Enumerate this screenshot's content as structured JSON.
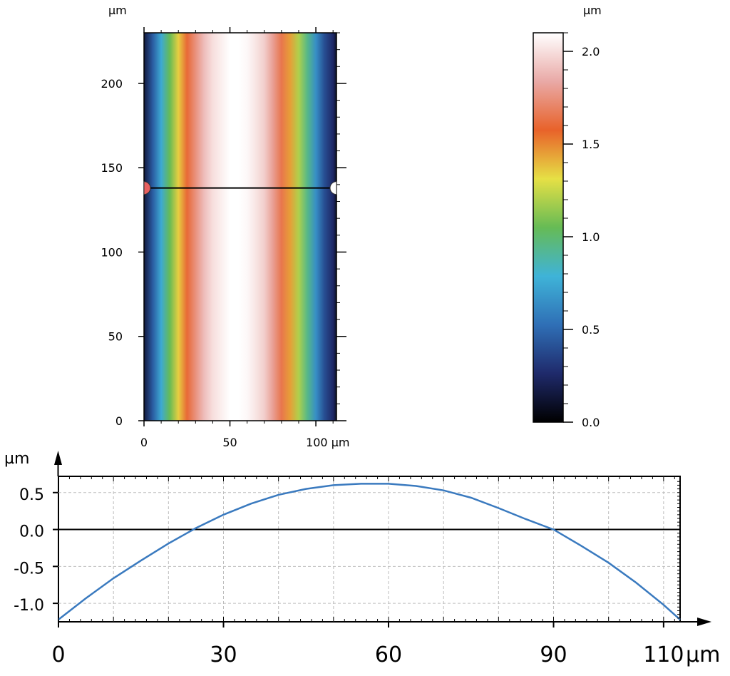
{
  "chart_data": [
    {
      "type": "heatmap",
      "description": "Surface height map",
      "x_unit": "µm",
      "y_unit": "µm",
      "xlim": [
        0,
        112
      ],
      "ylim": [
        0,
        230
      ],
      "xticks": [
        0,
        50,
        100
      ],
      "yticks": [
        0,
        50,
        100,
        150,
        200
      ],
      "x_last_tick_label": "100 µm",
      "profile_line_y": 138,
      "height_profile_across_x": {
        "x": [
          0,
          5,
          10,
          15,
          20,
          25,
          30,
          35,
          40,
          45,
          50,
          55,
          60,
          65,
          70,
          75,
          80,
          85,
          90,
          95,
          100,
          105,
          110,
          112
        ],
        "z": [
          0.15,
          0.45,
          0.75,
          1.05,
          1.35,
          1.6,
          1.75,
          1.9,
          2.0,
          2.05,
          2.1,
          2.1,
          2.08,
          2.02,
          1.95,
          1.8,
          1.65,
          1.45,
          1.2,
          0.95,
          0.65,
          0.4,
          0.25,
          0.1
        ]
      }
    },
    {
      "type": "colorbar",
      "unit": "µm",
      "range": [
        0.0,
        2.1
      ],
      "tick_labels": [
        "0.0",
        "0.5",
        "1.0",
        "1.5",
        "2.0"
      ],
      "tick_values": [
        0.0,
        0.5,
        1.0,
        1.5,
        2.0
      ],
      "colormap_stops": [
        "#000000",
        "#1f2a6b",
        "#2f6fb6",
        "#3fb3d8",
        "#66bb55",
        "#e6e045",
        "#e8622a",
        "#e9a9a6",
        "#ffffff"
      ]
    },
    {
      "type": "line",
      "x_unit": "µm",
      "y_unit": "µm",
      "xlim": [
        0,
        113
      ],
      "ylim": [
        -1.25,
        0.72
      ],
      "xtick_labels": [
        "0",
        "30",
        "60",
        "90",
        "110"
      ],
      "xtick_values": [
        0,
        30,
        60,
        90,
        110
      ],
      "ytick_labels": [
        "0.5",
        "0.0",
        "-0.5",
        "-1.0"
      ],
      "ytick_values": [
        0.5,
        0.0,
        -0.5,
        -1.0
      ],
      "grid": true,
      "series": [
        {
          "color": "#3a7abf",
          "x": [
            0,
            5,
            10,
            15,
            20,
            25,
            30,
            35,
            40,
            45,
            50,
            55,
            58,
            60,
            65,
            70,
            75,
            80,
            85,
            90,
            95,
            100,
            105,
            110,
            113
          ],
          "y": [
            -1.22,
            -0.93,
            -0.66,
            -0.42,
            -0.19,
            0.02,
            0.2,
            0.35,
            0.47,
            0.55,
            0.6,
            0.62,
            0.62,
            0.62,
            0.59,
            0.53,
            0.43,
            0.29,
            0.14,
            0.0,
            -0.22,
            -0.45,
            -0.72,
            -1.02,
            -1.22
          ]
        }
      ]
    }
  ]
}
